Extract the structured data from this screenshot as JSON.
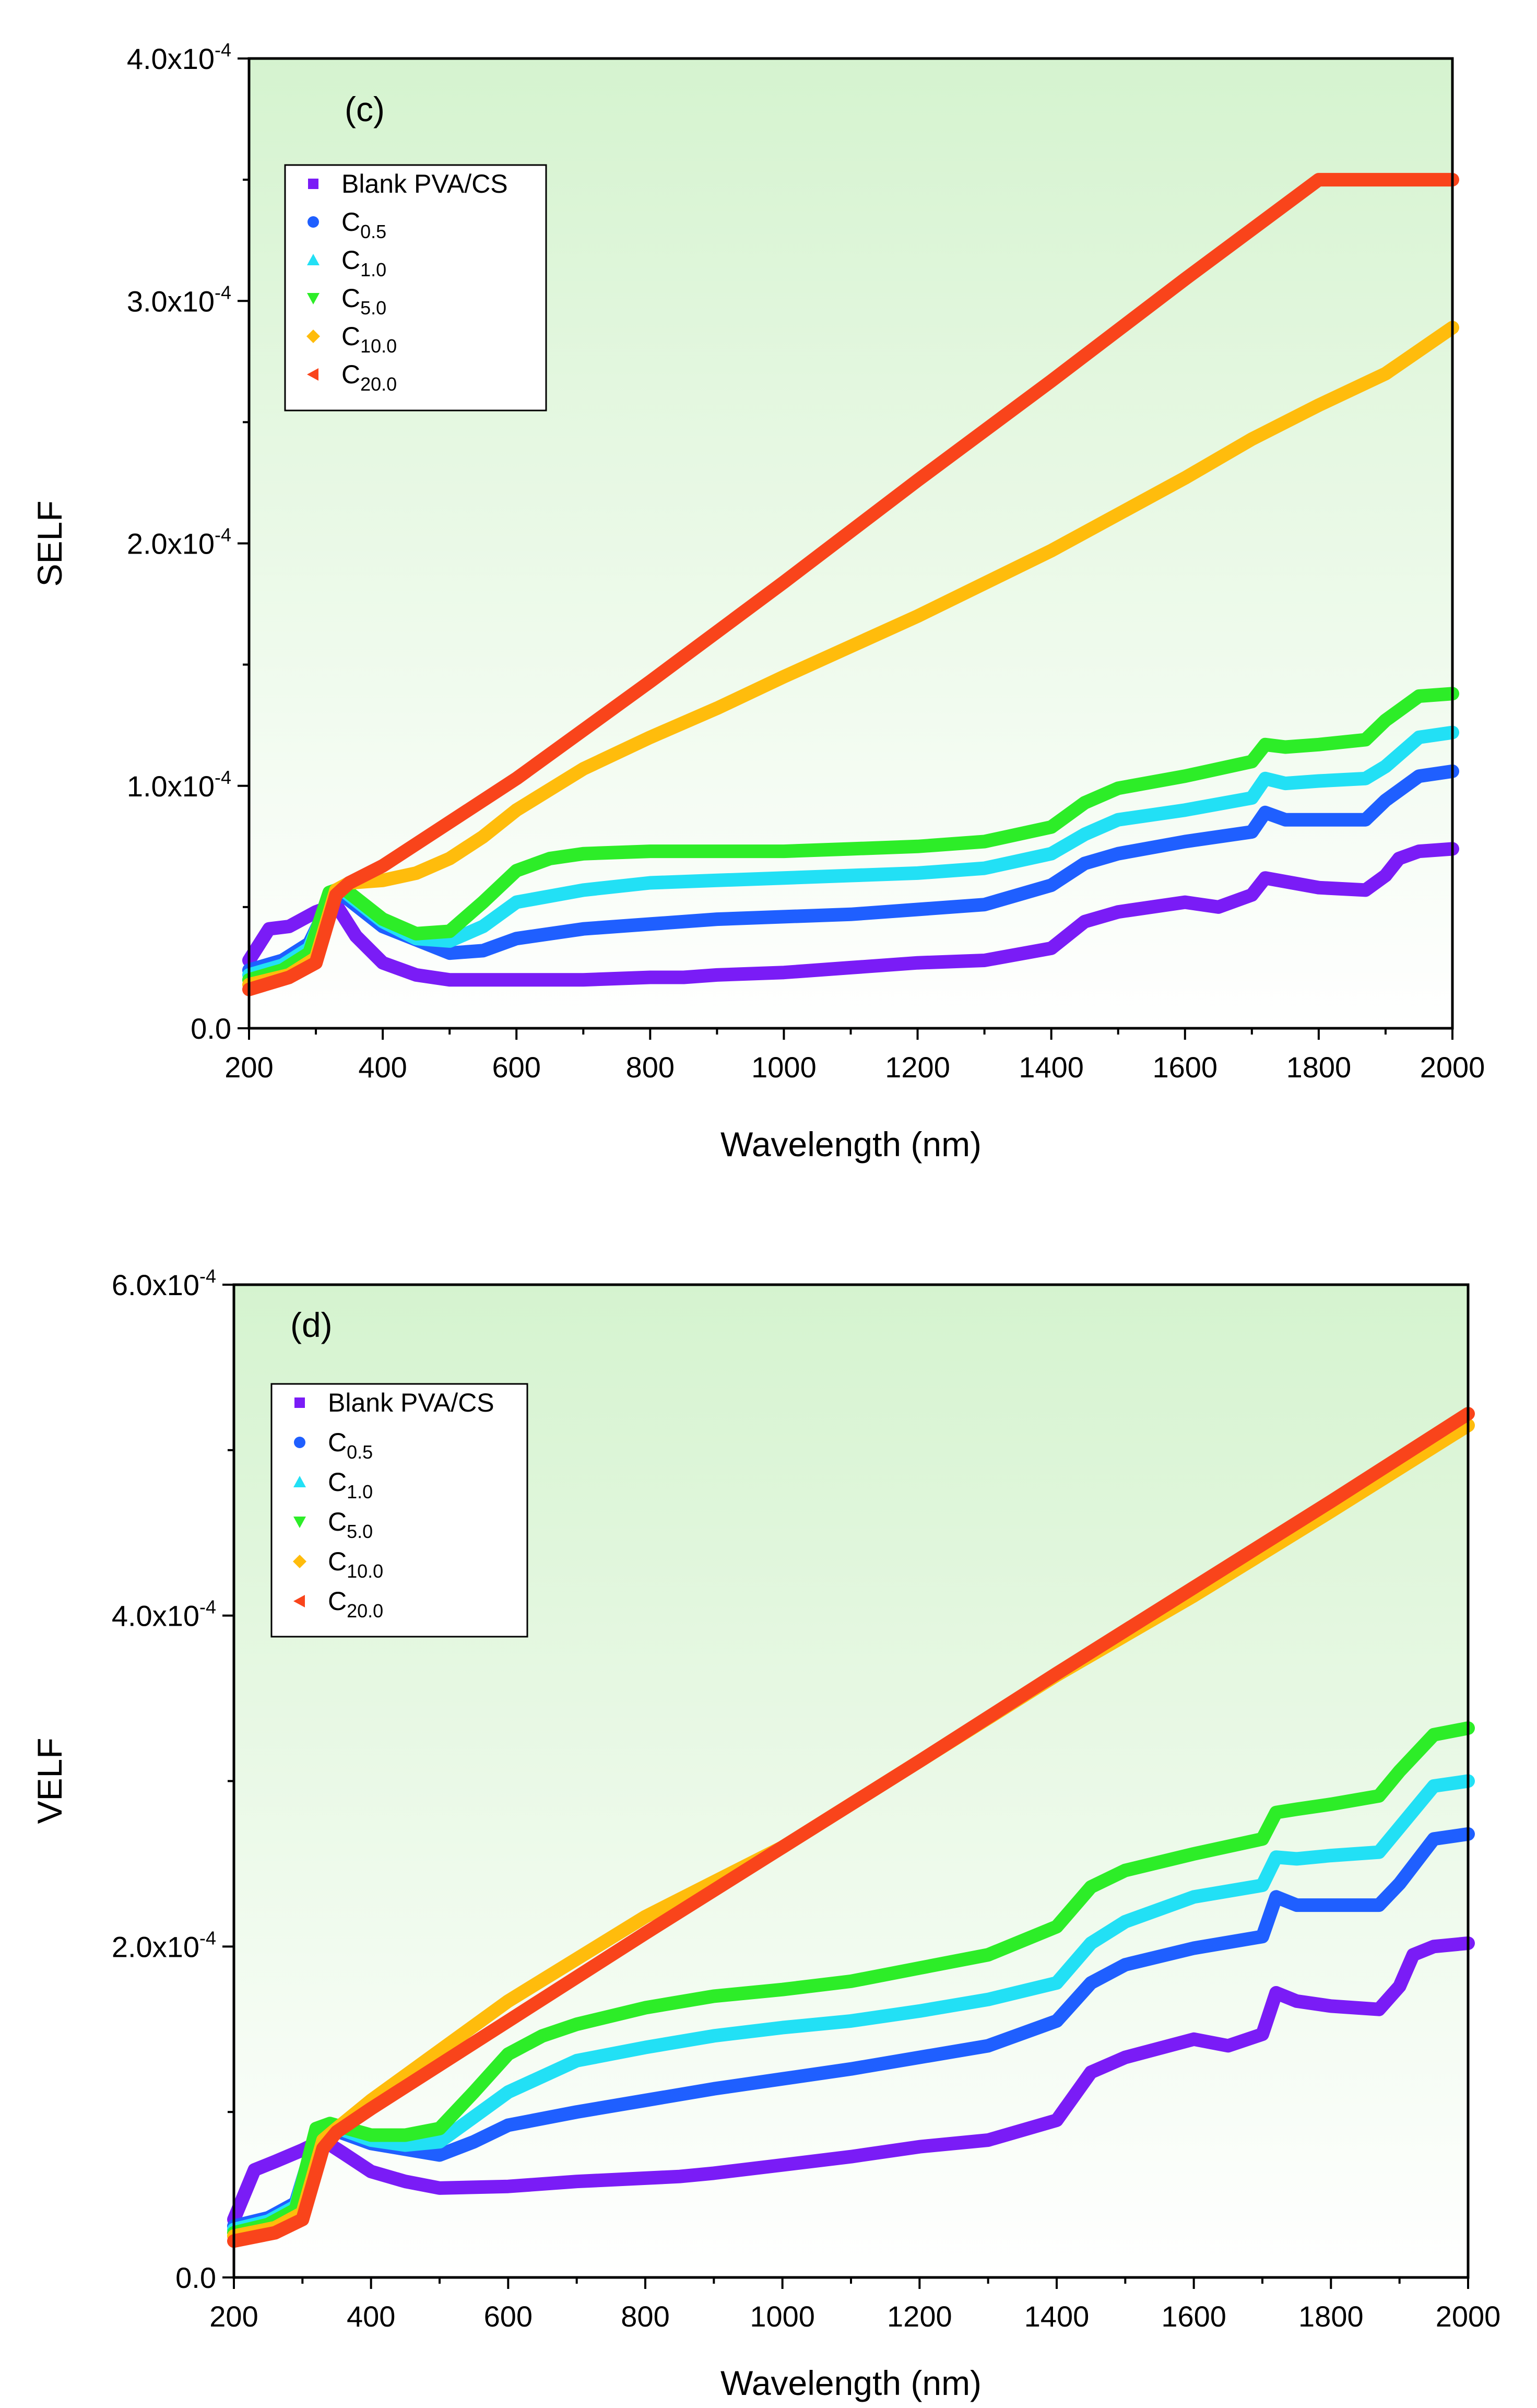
{
  "chart_data": [
    {
      "type": "line",
      "panel_label": "(c)",
      "title": "",
      "xlabel": "Wavelength (nm)",
      "ylabel": "SELF",
      "xlim": [
        200,
        2000
      ],
      "ylim": [
        0,
        0.0004
      ],
      "grid": false,
      "legend_position": "top-left",
      "x_ticks": [
        200,
        400,
        600,
        800,
        1000,
        1200,
        1400,
        1600,
        1800,
        2000
      ],
      "x_tick_labels": [
        "200",
        "400",
        "600",
        "800",
        "1000",
        "1200",
        "1400",
        "1600",
        "1800",
        "2000"
      ],
      "y_ticks": [
        0,
        0.0001,
        0.0002,
        0.0003,
        0.0004
      ],
      "y_tick_labels": [
        {
          "base": "0.0",
          "exp": ""
        },
        {
          "base": "1.0x10",
          "exp": "-4"
        },
        {
          "base": "2.0x10",
          "exp": "-4"
        },
        {
          "base": "3.0x10",
          "exp": "-4"
        },
        {
          "base": "4.0x10",
          "exp": "-4"
        }
      ],
      "series": [
        {
          "name": "Blank PVA/CS",
          "name_base": "Blank PVA/CS",
          "name_sub": "",
          "marker": "square",
          "color": "#7a1cf6",
          "x": [
            200,
            230,
            260,
            300,
            330,
            360,
            400,
            450,
            500,
            600,
            700,
            800,
            850,
            900,
            1000,
            1100,
            1200,
            1300,
            1400,
            1450,
            1500,
            1600,
            1650,
            1700,
            1720,
            1800,
            1870,
            1900,
            1920,
            1950,
            2000
          ],
          "values": [
            2.8e-05,
            4.1e-05,
            4.2e-05,
            4.8e-05,
            5.1e-05,
            3.8e-05,
            2.7e-05,
            2.2e-05,
            2e-05,
            2e-05,
            2e-05,
            2.1e-05,
            2.1e-05,
            2.2e-05,
            2.3e-05,
            2.5e-05,
            2.7e-05,
            2.8e-05,
            3.3e-05,
            4.4e-05,
            4.8e-05,
            5.2e-05,
            5e-05,
            5.5e-05,
            6.2e-05,
            5.8e-05,
            5.7e-05,
            6.3e-05,
            7e-05,
            7.3e-05,
            7.4e-05
          ]
        },
        {
          "name": "C0.5",
          "name_base": "C",
          "name_sub": "0.5",
          "marker": "circle",
          "color": "#1f5fff",
          "x": [
            200,
            250,
            290,
            320,
            340,
            400,
            500,
            550,
            600,
            700,
            800,
            900,
            1000,
            1100,
            1200,
            1300,
            1400,
            1450,
            1500,
            1600,
            1700,
            1720,
            1750,
            1800,
            1870,
            1900,
            1950,
            2000
          ],
          "values": [
            2.4e-05,
            2.8e-05,
            3.5e-05,
            5.2e-05,
            5.5e-05,
            4.2e-05,
            3.1e-05,
            3.2e-05,
            3.7e-05,
            4.1e-05,
            4.3e-05,
            4.5e-05,
            4.6e-05,
            4.7e-05,
            4.9e-05,
            5.1e-05,
            5.9e-05,
            6.8e-05,
            7.2e-05,
            7.7e-05,
            8.1e-05,
            8.9e-05,
            8.6e-05,
            8.6e-05,
            8.6e-05,
            9.4e-05,
            0.000104,
            0.000106
          ]
        },
        {
          "name": "C1.0",
          "name_base": "C",
          "name_sub": "1.0",
          "marker": "triangle-up",
          "color": "#22e0f5",
          "x": [
            200,
            250,
            290,
            320,
            340,
            400,
            450,
            500,
            550,
            600,
            700,
            800,
            900,
            1000,
            1100,
            1200,
            1300,
            1400,
            1450,
            1500,
            1600,
            1700,
            1720,
            1750,
            1800,
            1870,
            1900,
            1950,
            2000
          ],
          "values": [
            2.2e-05,
            2.6e-05,
            3.3e-05,
            5.4e-05,
            5.7e-05,
            4.4e-05,
            3.7e-05,
            3.6e-05,
            4.2e-05,
            5.2e-05,
            5.7e-05,
            6e-05,
            6.1e-05,
            6.2e-05,
            6.3e-05,
            6.4e-05,
            6.6e-05,
            7.2e-05,
            8e-05,
            8.6e-05,
            9e-05,
            9.5e-05,
            0.000103,
            0.000101,
            0.000102,
            0.000103,
            0.000108,
            0.00012,
            0.000122
          ]
        },
        {
          "name": "C5.0",
          "name_base": "C",
          "name_sub": "5.0",
          "marker": "triangle-down",
          "color": "#2ded28",
          "x": [
            200,
            250,
            290,
            320,
            340,
            400,
            450,
            500,
            550,
            600,
            650,
            700,
            800,
            900,
            1000,
            1100,
            1200,
            1300,
            1400,
            1450,
            1500,
            1600,
            1700,
            1720,
            1750,
            1800,
            1870,
            1900,
            1950,
            2000
          ],
          "values": [
            2e-05,
            2.4e-05,
            3.1e-05,
            5.6e-05,
            5.8e-05,
            4.5e-05,
            3.9e-05,
            4e-05,
            5.2e-05,
            6.5e-05,
            7e-05,
            7.2e-05,
            7.3e-05,
            7.3e-05,
            7.3e-05,
            7.4e-05,
            7.5e-05,
            7.7e-05,
            8.3e-05,
            9.3e-05,
            9.9e-05,
            0.000104,
            0.00011,
            0.000117,
            0.000116,
            0.000117,
            0.000119,
            0.000127,
            0.000137,
            0.000138
          ]
        },
        {
          "name": "C10.0",
          "name_base": "C",
          "name_sub": "10.0",
          "marker": "diamond",
          "color": "#ffbc0c",
          "x": [
            200,
            260,
            300,
            330,
            350,
            400,
            450,
            500,
            550,
            600,
            700,
            800,
            900,
            1000,
            1200,
            1400,
            1600,
            1700,
            1800,
            1900,
            2000
          ],
          "values": [
            1.8e-05,
            2.2e-05,
            2.9e-05,
            5.7e-05,
            6e-05,
            6.1e-05,
            6.4e-05,
            7e-05,
            7.9e-05,
            9e-05,
            0.000107,
            0.00012,
            0.000132,
            0.000145,
            0.00017,
            0.000197,
            0.000227,
            0.000243,
            0.000257,
            0.00027,
            0.000289
          ]
        },
        {
          "name": "C20.0",
          "name_base": "C",
          "name_sub": "20.0",
          "marker": "triangle-left",
          "color": "#f9441b",
          "x": [
            200,
            260,
            300,
            330,
            350,
            400,
            600,
            800,
            1000,
            1200,
            1400,
            1600,
            1800,
            2000
          ],
          "values": [
            1.6e-05,
            2.1e-05,
            2.7e-05,
            5.5e-05,
            6e-05,
            6.7e-05,
            0.000103,
            0.000143,
            0.000184,
            0.000226,
            0.000267,
            0.000309,
            0.00035,
            0.00035
          ]
        }
      ]
    },
    {
      "type": "line",
      "panel_label": "(d)",
      "title": "",
      "xlabel": "Wavelength (nm)",
      "ylabel": "VELF",
      "xlim": [
        200,
        2000
      ],
      "ylim": [
        0,
        0.0006
      ],
      "grid": false,
      "legend_position": "top-left",
      "x_ticks": [
        200,
        400,
        600,
        800,
        1000,
        1200,
        1400,
        1600,
        1800,
        2000
      ],
      "x_tick_labels": [
        "200",
        "400",
        "600",
        "800",
        "1000",
        "1200",
        "1400",
        "1600",
        "1800",
        "2000"
      ],
      "y_ticks": [
        0,
        0.0002,
        0.0004,
        0.0006
      ],
      "y_tick_labels": [
        {
          "base": "0.0",
          "exp": ""
        },
        {
          "base": "2.0x10",
          "exp": "-4"
        },
        {
          "base": "4.0x10",
          "exp": "-4"
        },
        {
          "base": "6.0x10",
          "exp": "-4"
        }
      ],
      "series": [
        {
          "name": "Blank PVA/CS",
          "name_base": "Blank PVA/CS",
          "name_sub": "",
          "marker": "square",
          "color": "#7a1cf6",
          "x": [
            200,
            230,
            260,
            300,
            330,
            360,
            400,
            450,
            500,
            600,
            700,
            800,
            850,
            900,
            1000,
            1100,
            1200,
            1300,
            1400,
            1450,
            1500,
            1600,
            1650,
            1700,
            1720,
            1750,
            1800,
            1870,
            1900,
            1920,
            1950,
            2000
          ],
          "values": [
            3.5e-05,
            6.5e-05,
            7e-05,
            7.7e-05,
            8.3e-05,
            7.5e-05,
            6.4e-05,
            5.8e-05,
            5.4e-05,
            5.5e-05,
            5.8e-05,
            6e-05,
            6.1e-05,
            6.3e-05,
            6.8e-05,
            7.3e-05,
            7.9e-05,
            8.3e-05,
            9.5e-05,
            0.000124,
            0.000133,
            0.000144,
            0.00014,
            0.000147,
            0.000172,
            0.000167,
            0.000164,
            0.000162,
            0.000176,
            0.000195,
            0.0002,
            0.000202
          ]
        },
        {
          "name": "C0.5",
          "name_base": "C",
          "name_sub": "0.5",
          "marker": "circle",
          "color": "#1f5fff",
          "x": [
            200,
            250,
            290,
            320,
            340,
            400,
            500,
            550,
            600,
            700,
            800,
            900,
            1000,
            1100,
            1200,
            1300,
            1400,
            1450,
            1500,
            1600,
            1700,
            1720,
            1750,
            1800,
            1870,
            1900,
            1950,
            2000
          ],
          "values": [
            3.1e-05,
            3.6e-05,
            4.5e-05,
            8.6e-05,
            9e-05,
            8.1e-05,
            7.4e-05,
            8.2e-05,
            9.2e-05,
            0.0001,
            0.000107,
            0.000114,
            0.00012,
            0.000126,
            0.000133,
            0.00014,
            0.000155,
            0.000178,
            0.000189,
            0.000199,
            0.000206,
            0.00023,
            0.000225,
            0.000225,
            0.000225,
            0.000238,
            0.000265,
            0.000268
          ]
        },
        {
          "name": "C1.0",
          "name_base": "C",
          "name_sub": "1.0",
          "marker": "triangle-up",
          "color": "#22e0f5",
          "x": [
            200,
            250,
            290,
            320,
            340,
            400,
            450,
            500,
            550,
            600,
            700,
            800,
            900,
            1000,
            1100,
            1200,
            1300,
            1400,
            1450,
            1500,
            1600,
            1700,
            1720,
            1750,
            1800,
            1870,
            1900,
            1950,
            2000
          ],
          "values": [
            2.9e-05,
            3.4e-05,
            4.3e-05,
            8.8e-05,
            9.2e-05,
            8.3e-05,
            8e-05,
            8.2e-05,
            9.7e-05,
            0.000112,
            0.000131,
            0.000139,
            0.000146,
            0.000151,
            0.000155,
            0.000161,
            0.000168,
            0.000178,
            0.000202,
            0.000215,
            0.00023,
            0.000237,
            0.000254,
            0.000253,
            0.000255,
            0.000257,
            0.000272,
            0.000297,
            0.0003
          ]
        },
        {
          "name": "C5.0",
          "name_base": "C",
          "name_sub": "5.0",
          "marker": "triangle-down",
          "color": "#2ded28",
          "x": [
            200,
            250,
            290,
            320,
            340,
            400,
            450,
            500,
            550,
            600,
            650,
            700,
            800,
            900,
            1000,
            1100,
            1200,
            1300,
            1400,
            1450,
            1500,
            1600,
            1700,
            1720,
            1750,
            1800,
            1870,
            1900,
            1950,
            2000
          ],
          "values": [
            2.7e-05,
            3.2e-05,
            4.1e-05,
            9e-05,
            9.3e-05,
            8.6e-05,
            8.6e-05,
            9e-05,
            0.000112,
            0.000135,
            0.000146,
            0.000153,
            0.000163,
            0.00017,
            0.000174,
            0.000179,
            0.000187,
            0.000195,
            0.000212,
            0.000236,
            0.000246,
            0.000256,
            0.000265,
            0.000281,
            0.000283,
            0.000286,
            0.000291,
            0.000306,
            0.000328,
            0.000332
          ]
        },
        {
          "name": "C10.0",
          "name_base": "C",
          "name_sub": "10.0",
          "marker": "diamond",
          "color": "#ffbc0c",
          "x": [
            200,
            260,
            300,
            330,
            350,
            400,
            600,
            800,
            1000,
            1200,
            1400,
            1600,
            1800,
            2000
          ],
          "values": [
            2.5e-05,
            3e-05,
            3.9e-05,
            8.3e-05,
            9e-05,
            0.000107,
            0.000167,
            0.000218,
            0.00026,
            0.000312,
            0.000364,
            0.000412,
            0.000463,
            0.000515
          ]
        },
        {
          "name": "C20.0",
          "name_base": "C",
          "name_sub": "20.0",
          "marker": "triangle-left",
          "color": "#f9441b",
          "x": [
            200,
            260,
            300,
            330,
            350,
            400,
            600,
            800,
            1000,
            1200,
            1400,
            1600,
            1800,
            2000
          ],
          "values": [
            2.2e-05,
            2.7e-05,
            3.5e-05,
            7.8e-05,
            8.8e-05,
            0.000102,
            0.000155,
            0.000208,
            0.00026,
            0.000312,
            0.000365,
            0.000417,
            0.000469,
            0.000522
          ]
        }
      ]
    }
  ]
}
